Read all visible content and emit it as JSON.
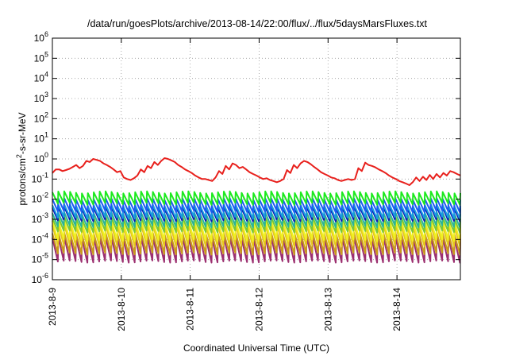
{
  "chart_data": {
    "type": "line",
    "title": "/data/run/goesPlots/archive/2013-08-14/22:00/flux/../flux/5daysMarsFluxes.txt",
    "xlabel": "Coordinated Universal Time (UTC)",
    "ylabel_main": "protons/cm",
    "ylabel_sup": "2",
    "ylabel_rest": "-s-sr-MeV",
    "y_scale": "log",
    "ylim_exp": [
      -6,
      6
    ],
    "y_tick_exponents": [
      6,
      5,
      4,
      3,
      2,
      1,
      0,
      -1,
      -2,
      -3,
      -4,
      -5,
      -6
    ],
    "y_tick_base": "10",
    "x_ticks": [
      "2013-8-9",
      "2013-8-10",
      "2013-8-11",
      "2013-8-12",
      "2013-8-13",
      "2013-8-14"
    ],
    "x_tick_day": [
      0,
      1,
      2,
      3,
      4,
      5
    ],
    "xlim_days": [
      0,
      5.92
    ],
    "grid": true,
    "legend": "none",
    "series": [
      {
        "color": "#e8201c",
        "values": [
          0.2,
          0.3,
          0.3,
          0.25,
          0.28,
          0.32,
          0.4,
          0.5,
          0.35,
          0.45,
          0.8,
          0.7,
          1.0,
          0.9,
          0.8,
          0.6,
          0.5,
          0.4,
          0.3,
          0.22,
          0.25,
          0.12,
          0.1,
          0.09,
          0.11,
          0.15,
          0.3,
          0.22,
          0.45,
          0.35,
          0.7,
          0.5,
          0.8,
          1.1,
          1.0,
          0.85,
          0.7,
          0.5,
          0.4,
          0.3,
          0.25,
          0.2,
          0.15,
          0.12,
          0.1,
          0.1,
          0.09,
          0.08,
          0.12,
          0.25,
          0.18,
          0.45,
          0.3,
          0.6,
          0.5,
          0.35,
          0.4,
          0.3,
          0.22,
          0.18,
          0.15,
          0.12,
          0.1,
          0.11,
          0.09,
          0.08,
          0.07,
          0.08,
          0.1,
          0.28,
          0.2,
          0.5,
          0.35,
          0.6,
          0.8,
          0.7,
          0.55,
          0.4,
          0.3,
          0.22,
          0.18,
          0.15,
          0.12,
          0.11,
          0.09,
          0.08,
          0.09,
          0.1,
          0.09,
          0.1,
          0.35,
          0.25,
          0.65,
          0.5,
          0.45,
          0.38,
          0.3,
          0.25,
          0.2,
          0.15,
          0.12,
          0.1,
          0.08,
          0.07,
          0.06,
          0.05,
          0.07,
          0.12,
          0.08,
          0.13,
          0.09,
          0.16,
          0.1,
          0.18,
          0.12,
          0.2,
          0.15,
          0.25,
          0.22,
          0.18,
          0.15
        ]
      },
      {
        "color": "#1de91f",
        "peak": 0.022,
        "trough": 0.006
      },
      {
        "color": "#1a5cf0",
        "peak": 0.01,
        "trough": 0.0025
      },
      {
        "color": "#1a9ce0",
        "peak": 0.005,
        "trough": 0.0012
      },
      {
        "color": "#0a18b8",
        "peak": 0.0038,
        "trough": 0.0009
      },
      {
        "color": "#2bb597",
        "peak": 0.002,
        "trough": 0.00045
      },
      {
        "color": "#7ac832",
        "peak": 0.0012,
        "trough": 0.00025
      },
      {
        "color": "#f0f022",
        "peak": 0.00085,
        "trough": 9e-05
      },
      {
        "color": "#e6c81c",
        "peak": 0.0005,
        "trough": 5e-05
      },
      {
        "color": "#c99a1a",
        "peak": 0.0002,
        "trough": 2e-05
      },
      {
        "color": "#9c3070",
        "peak": 0.00012,
        "trough": 8e-06
      }
    ],
    "periodic_cycles": 69
  }
}
